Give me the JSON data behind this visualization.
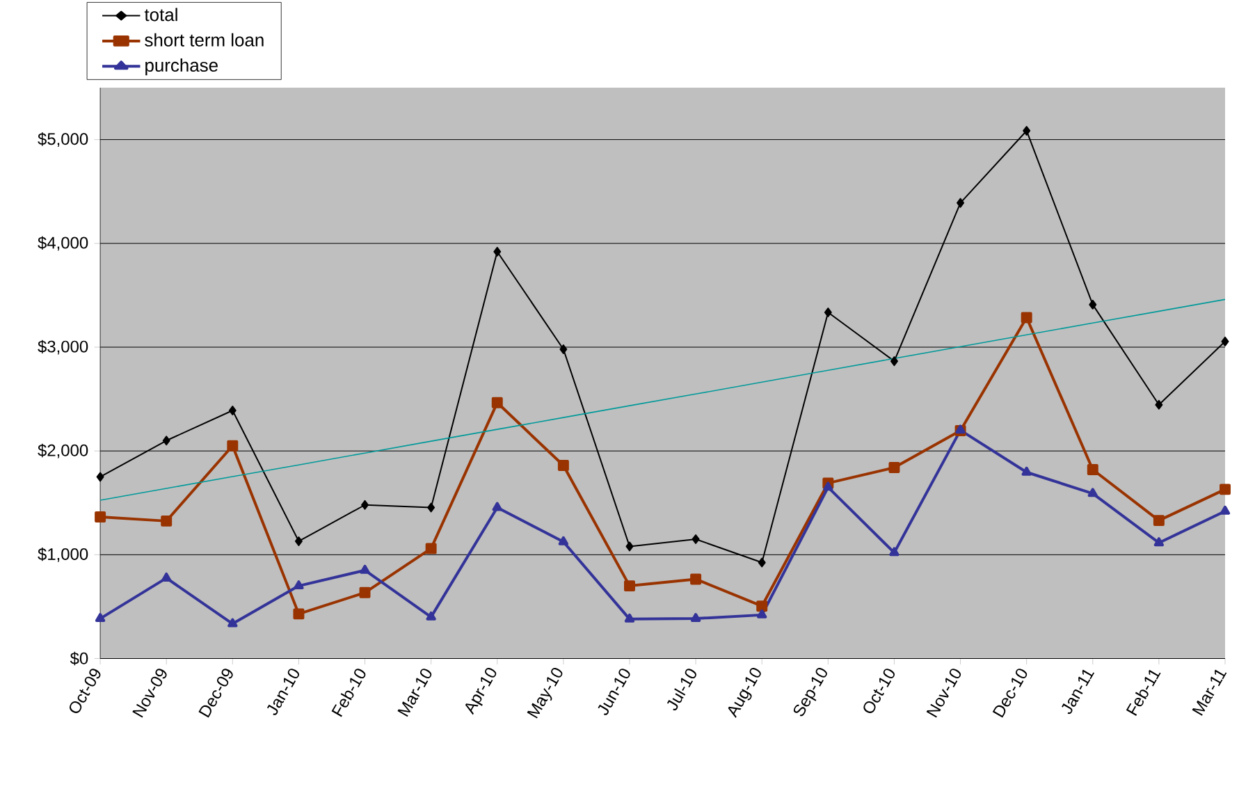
{
  "chart_data": {
    "type": "line",
    "categories": [
      "Oct-09",
      "Nov-09",
      "Dec-09",
      "Jan-10",
      "Feb-10",
      "Mar-10",
      "Apr-10",
      "May-10",
      "Jun-10",
      "Jul-10",
      "Aug-10",
      "Sep-10",
      "Oct-10",
      "Nov-10",
      "Dec-10",
      "Jan-11",
      "Feb-11",
      "Mar-11"
    ],
    "series": [
      {
        "name": "total",
        "color": "#000000",
        "marker": "diamond",
        "values": [
          1750,
          2100,
          2390,
          1130,
          1480,
          1455,
          3920,
          2980,
          1080,
          1150,
          925,
          3335,
          2865,
          4390,
          5085,
          3410,
          2445,
          3055
        ]
      },
      {
        "name": "short term loan",
        "color": "#993300",
        "marker": "square",
        "values": [
          1365,
          1325,
          2050,
          430,
          635,
          1060,
          2465,
          1860,
          700,
          765,
          505,
          1690,
          1840,
          2195,
          3285,
          1820,
          1330,
          1630
        ]
      },
      {
        "name": "purchase",
        "color": "#333399",
        "marker": "triangle",
        "values": [
          385,
          775,
          335,
          700,
          850,
          400,
          1455,
          1125,
          380,
          385,
          420,
          1650,
          1020,
          2200,
          1795,
          1590,
          1115,
          1420
        ]
      },
      {
        "type": "line",
        "color": "#009999",
        "marker": "none",
        "values": [
          1525,
          1639,
          1753,
          1866,
          1980,
          2094,
          2208,
          2322,
          2436,
          2549,
          2663,
          2777,
          2891,
          3005,
          3119,
          3233,
          3346,
          3460
        ]
      }
    ],
    "ylim": [
      0,
      5500
    ],
    "yticks": [
      {
        "value": 0,
        "label": "$0"
      },
      {
        "value": 1000,
        "label": "$1,000"
      },
      {
        "value": 2000,
        "label": "$2,000"
      },
      {
        "value": 3000,
        "label": "$3,000"
      },
      {
        "value": 4000,
        "label": "$4,000"
      },
      {
        "value": 5000,
        "label": "$5,000"
      }
    ],
    "grid": "y",
    "legend": "top left"
  }
}
